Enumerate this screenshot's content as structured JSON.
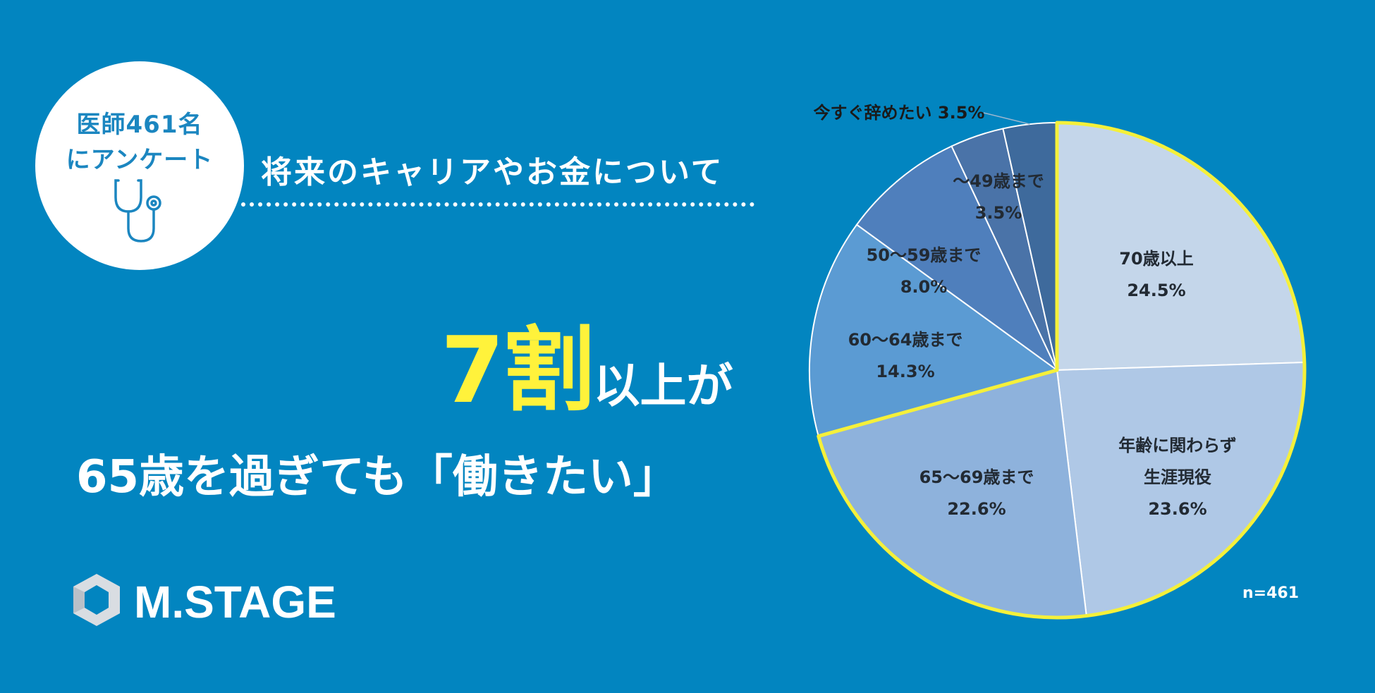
{
  "badge": {
    "line1": "医師461名",
    "line2": "にアンケート"
  },
  "subtitle": "将来のキャリアやお金について",
  "headline": {
    "big": "7割",
    "small": "以上が"
  },
  "line2": "65歳を過ぎても「働きたい」",
  "brand": {
    "logo_text": "M.STAGE"
  },
  "n_label": "n=461",
  "colors": {
    "background": "#0285c0",
    "accent": "#fff23b",
    "highlight_border": "#f5f03a"
  },
  "chart_data": {
    "type": "pie",
    "title": "",
    "slices": [
      {
        "label_lines": [
          "70歳以上"
        ],
        "value": 24.5,
        "value_text": "24.5%",
        "color": "#c4d6ea",
        "highlighted": true
      },
      {
        "label_lines": [
          "年齢に関わらず",
          "生涯現役"
        ],
        "value": 23.6,
        "value_text": "23.6%",
        "color": "#afc8e6",
        "highlighted": true
      },
      {
        "label_lines": [
          "65～69歳まで"
        ],
        "value": 22.6,
        "value_text": "22.6%",
        "color": "#8eb2dc",
        "highlighted": true
      },
      {
        "label_lines": [
          "60～64歳まで"
        ],
        "value": 14.3,
        "value_text": "14.3%",
        "color": "#5b9bd3",
        "highlighted": false
      },
      {
        "label_lines": [
          "50～59歳まで"
        ],
        "value": 8.0,
        "value_text": "8.0%",
        "color": "#4f7fbc",
        "highlighted": false
      },
      {
        "label_lines": [
          "～49歳まで"
        ],
        "value": 3.5,
        "value_text": "3.5%",
        "color": "#4a73a8",
        "highlighted": false
      },
      {
        "label_lines": [
          "今すぐ辞めたい"
        ],
        "value": 3.5,
        "value_text": "3.5%",
        "color": "#3e6a9c",
        "highlighted": false
      }
    ]
  }
}
